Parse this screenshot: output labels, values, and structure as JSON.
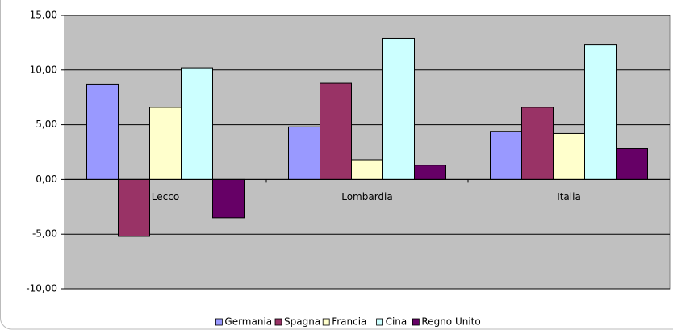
{
  "chart_data": {
    "type": "bar",
    "categories": [
      "Lecco",
      "Lombardia",
      "Italia"
    ],
    "series": [
      {
        "name": "Germania",
        "color": "#9999ff",
        "values": [
          8.7,
          4.8,
          4.4
        ]
      },
      {
        "name": "Spagna",
        "color": "#993366",
        "values": [
          -5.2,
          8.8,
          6.6
        ]
      },
      {
        "name": "Francia",
        "color": "#ffffcc",
        "values": [
          6.6,
          1.8,
          4.2
        ]
      },
      {
        "name": "Cina",
        "color": "#ccffff",
        "values": [
          10.2,
          12.9,
          12.3
        ]
      },
      {
        "name": "Regno Unito",
        "color": "#660066",
        "values": [
          -3.5,
          1.3,
          2.8
        ]
      }
    ],
    "ylim": [
      -10,
      15
    ],
    "yticks": [
      {
        "value": -10,
        "label": "-10,00"
      },
      {
        "value": -5,
        "label": "-5,00"
      },
      {
        "value": 0,
        "label": "0,00"
      },
      {
        "value": 5,
        "label": "5,00"
      },
      {
        "value": 10,
        "label": "10,00"
      },
      {
        "value": 15,
        "label": "15,00"
      }
    ],
    "grid": true,
    "background": "#c0c0c0",
    "legend": "bottom"
  }
}
